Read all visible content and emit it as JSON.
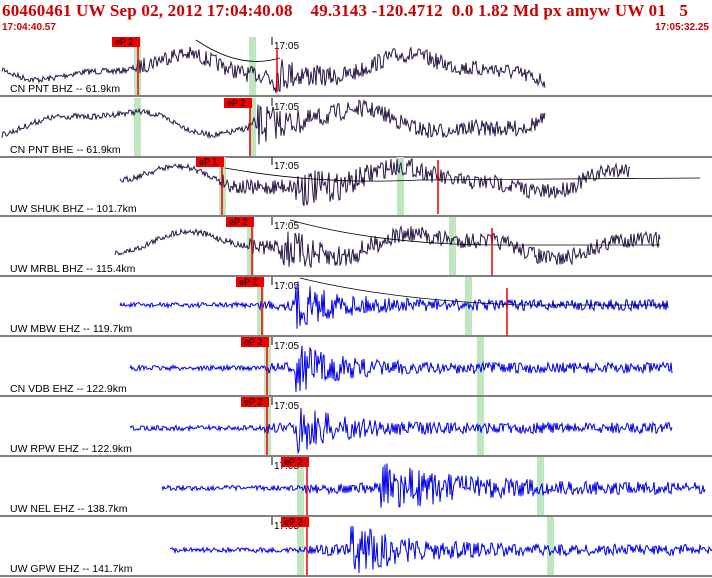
{
  "header": {
    "title": "60460461 UW Sep 02, 2012 17:04:40.08    49.3143 -120.4712  0.0 1.82 Md px amyw UW 01   5",
    "start_time": "17:04:40.57",
    "end_time": "17:05:32.25"
  },
  "tick_label": "17:05",
  "colors": {
    "title": "#cc0000",
    "long_period": "#2a1845",
    "short_period": "#0000ee",
    "pick": "#ee0000",
    "band": "#bfe6bf"
  },
  "traces": [
    {
      "label": "CN PNT BHZ -- 61.9km",
      "pick": "eP 2",
      "type": "long"
    },
    {
      "label": "CN PNT BHE -- 61.9km",
      "pick": "eP 2",
      "type": "long"
    },
    {
      "label": "UW SHUK BHZ -- 101.7km",
      "pick": "eP 1",
      "type": "long"
    },
    {
      "label": "UW MRBL BHZ -- 115.4km",
      "pick": "eP 2",
      "type": "long"
    },
    {
      "label": "UW MBW EHZ -- 119.7km",
      "pick": "eP 2",
      "type": "short"
    },
    {
      "label": "CN VDB EHZ -- 122.9km",
      "pick": "eP 2",
      "type": "short"
    },
    {
      "label": "UW RPW EHZ -- 122.9km",
      "pick": "eP 2",
      "type": "short"
    },
    {
      "label": "UW NEL EHZ -- 138.7km",
      "pick": "eP 2",
      "type": "short"
    },
    {
      "label": "UW GPW EHZ -- 141.7km",
      "pick": "eP 2",
      "type": "short"
    }
  ]
}
